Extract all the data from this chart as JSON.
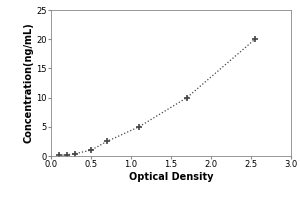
{
  "x_data": [
    0.1,
    0.2,
    0.3,
    0.5,
    0.7,
    1.1,
    1.7,
    2.55
  ],
  "y_data": [
    0.1,
    0.2,
    0.4,
    1.0,
    2.5,
    5.0,
    10.0,
    20.0
  ],
  "xlabel": "Optical Density",
  "ylabel": "Concentration(ng/mL)",
  "xlim": [
    0,
    3
  ],
  "ylim": [
    0,
    25
  ],
  "xticks": [
    0,
    0.5,
    1.0,
    1.5,
    2.0,
    2.5,
    3.0
  ],
  "yticks": [
    0,
    5,
    10,
    15,
    20,
    25
  ],
  "line_color": "#444444",
  "marker_style": "+",
  "marker_color": "#444444",
  "marker_size": 5,
  "line_style": "dotted",
  "background_color": "#ffffff",
  "axis_fontsize": 7,
  "tick_fontsize": 6,
  "label_fontweight": "bold"
}
